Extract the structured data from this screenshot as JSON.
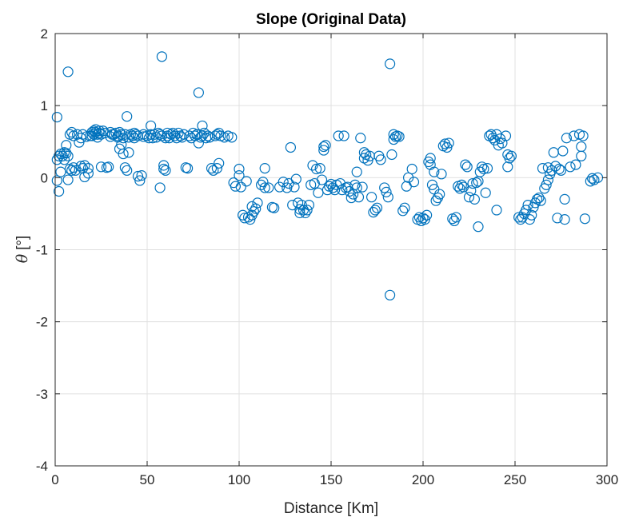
{
  "chart_data": {
    "type": "scatter",
    "title": "Slope (Original Data)",
    "xlabel": "Distance [Km]",
    "ylabel_symbol": "θ",
    "ylabel_unit": "[°]",
    "xlim": [
      0,
      300
    ],
    "ylim": [
      -4,
      2
    ],
    "xticks": [
      0,
      50,
      100,
      150,
      200,
      250,
      300
    ],
    "yticks": [
      -4,
      -3,
      -2,
      -1,
      0,
      1,
      2
    ],
    "grid": true,
    "marker": "open-circle",
    "marker_color": "#0072BD",
    "series": [
      {
        "points": [
          [
            1,
            0.84
          ],
          [
            1,
            0.25
          ],
          [
            1,
            -0.04
          ],
          [
            2,
            0.3
          ],
          [
            2,
            -0.19
          ],
          [
            3,
            0.33
          ],
          [
            3,
            0.08
          ],
          [
            4,
            0.3
          ],
          [
            5,
            0.25
          ],
          [
            5,
            0.35
          ],
          [
            6,
            0.34
          ],
          [
            6,
            0.45
          ],
          [
            7,
            0.3
          ],
          [
            7,
            1.47
          ],
          [
            7,
            -0.03
          ],
          [
            8,
            0.6
          ],
          [
            8,
            0.12
          ],
          [
            9,
            0.63
          ],
          [
            9,
            0.1
          ],
          [
            10,
            0.14
          ],
          [
            10,
            0.58
          ],
          [
            11,
            0.1
          ],
          [
            12,
            0.6
          ],
          [
            13,
            0.49
          ],
          [
            14,
            0.55
          ],
          [
            14,
            0.16
          ],
          [
            15,
            0.6
          ],
          [
            15,
            0.13
          ],
          [
            16,
            0.17
          ],
          [
            16,
            0.01
          ],
          [
            17,
            0.57
          ],
          [
            18,
            0.13
          ],
          [
            18,
            0.06
          ],
          [
            19,
            0.58
          ],
          [
            20,
            0.63
          ],
          [
            20,
            0.58
          ],
          [
            21,
            0.65
          ],
          [
            21,
            0.6
          ],
          [
            22,
            0.67
          ],
          [
            22,
            0.63
          ],
          [
            23,
            0.6
          ],
          [
            23,
            0.56
          ],
          [
            24,
            0.65
          ],
          [
            24,
            0.62
          ],
          [
            25,
            0.15
          ],
          [
            25,
            0.6
          ],
          [
            26,
            0.65
          ],
          [
            27,
            0.62
          ],
          [
            28,
            0.14
          ],
          [
            29,
            0.15
          ],
          [
            30,
            0.57
          ],
          [
            30,
            0.63
          ],
          [
            31,
            0.6
          ],
          [
            32,
            0.6
          ],
          [
            33,
            0.62
          ],
          [
            34,
            0.56
          ],
          [
            34,
            0.58
          ],
          [
            35,
            0.4
          ],
          [
            35,
            0.63
          ],
          [
            36,
            0.6
          ],
          [
            36,
            0.46
          ],
          [
            37,
            0.33
          ],
          [
            37,
            0.55
          ],
          [
            38,
            0.6
          ],
          [
            38,
            0.14
          ],
          [
            39,
            0.1
          ],
          [
            39,
            0.85
          ],
          [
            40,
            0.56
          ],
          [
            40,
            0.35
          ],
          [
            41,
            0.6
          ],
          [
            42,
            0.58
          ],
          [
            43,
            0.62
          ],
          [
            43,
            0.55
          ],
          [
            44,
            0.6
          ],
          [
            45,
            0.58
          ],
          [
            45,
            0.02
          ],
          [
            46,
            -0.04
          ],
          [
            47,
            0.03
          ],
          [
            48,
            0.57
          ],
          [
            48,
            0.6
          ],
          [
            50,
            0.58
          ],
          [
            51,
            0.55
          ],
          [
            52,
            0.72
          ],
          [
            52,
            0.6
          ],
          [
            53,
            0.55
          ],
          [
            54,
            0.6
          ],
          [
            55,
            0.56
          ],
          [
            56,
            0.62
          ],
          [
            57,
            0.6
          ],
          [
            57,
            -0.14
          ],
          [
            58,
            0.58
          ],
          [
            58,
            1.68
          ],
          [
            59,
            0.17
          ],
          [
            59,
            0.12
          ],
          [
            60,
            0.1
          ],
          [
            60,
            0.55
          ],
          [
            61,
            0.62
          ],
          [
            61,
            0.58
          ],
          [
            62,
            0.55
          ],
          [
            63,
            0.6
          ],
          [
            64,
            0.62
          ],
          [
            65,
            0.58
          ],
          [
            66,
            0.55
          ],
          [
            67,
            0.62
          ],
          [
            68,
            0.58
          ],
          [
            69,
            0.56
          ],
          [
            70,
            0.6
          ],
          [
            71,
            0.14
          ],
          [
            72,
            0.13
          ],
          [
            73,
            0.58
          ],
          [
            74,
            0.55
          ],
          [
            75,
            0.62
          ],
          [
            76,
            0.58
          ],
          [
            77,
            0.6
          ],
          [
            78,
            0.48
          ],
          [
            78,
            1.18
          ],
          [
            79,
            0.56
          ],
          [
            80,
            0.72
          ],
          [
            80,
            0.58
          ],
          [
            81,
            0.62
          ],
          [
            82,
            0.55
          ],
          [
            83,
            0.58
          ],
          [
            84,
            0.56
          ],
          [
            85,
            0.13
          ],
          [
            86,
            0.1
          ],
          [
            87,
            0.58
          ],
          [
            88,
            0.6
          ],
          [
            88,
            0.13
          ],
          [
            89,
            0.62
          ],
          [
            89,
            0.2
          ],
          [
            90,
            0.58
          ],
          [
            92,
            0.56
          ],
          [
            94,
            0.58
          ],
          [
            96,
            0.56
          ],
          [
            97,
            -0.07
          ],
          [
            98,
            -0.12
          ],
          [
            100,
            0.12
          ],
          [
            100,
            0.03
          ],
          [
            101,
            -0.13
          ],
          [
            102,
            -0.52
          ],
          [
            103,
            -0.56
          ],
          [
            104,
            -0.05
          ],
          [
            105,
            -0.55
          ],
          [
            106,
            -0.58
          ],
          [
            107,
            -0.52
          ],
          [
            107,
            -0.4
          ],
          [
            108,
            -0.47
          ],
          [
            109,
            -0.43
          ],
          [
            110,
            -0.35
          ],
          [
            112,
            -0.1
          ],
          [
            113,
            -0.06
          ],
          [
            114,
            -0.14
          ],
          [
            114,
            0.13
          ],
          [
            116,
            -0.14
          ],
          [
            118,
            -0.41
          ],
          [
            119,
            -0.42
          ],
          [
            122,
            -0.13
          ],
          [
            124,
            -0.06
          ],
          [
            126,
            -0.14
          ],
          [
            127,
            -0.08
          ],
          [
            128,
            0.42
          ],
          [
            129,
            -0.38
          ],
          [
            130,
            -0.13
          ],
          [
            131,
            -0.02
          ],
          [
            132,
            -0.35
          ],
          [
            133,
            -0.49
          ],
          [
            133,
            -0.44
          ],
          [
            134,
            -0.38
          ],
          [
            135,
            -0.45
          ],
          [
            136,
            -0.49
          ],
          [
            137,
            -0.45
          ],
          [
            138,
            -0.38
          ],
          [
            139,
            -0.1
          ],
          [
            140,
            0.17
          ],
          [
            141,
            -0.08
          ],
          [
            142,
            0.12
          ],
          [
            143,
            -0.21
          ],
          [
            144,
            0.13
          ],
          [
            145,
            -0.03
          ],
          [
            146,
            0.43
          ],
          [
            146,
            0.38
          ],
          [
            147,
            0.45
          ],
          [
            148,
            -0.17
          ],
          [
            149,
            -0.12
          ],
          [
            150,
            -0.09
          ],
          [
            151,
            -0.14
          ],
          [
            152,
            -0.17
          ],
          [
            153,
            -0.1
          ],
          [
            154,
            0.58
          ],
          [
            155,
            -0.08
          ],
          [
            156,
            -0.17
          ],
          [
            157,
            0.58
          ],
          [
            158,
            -0.14
          ],
          [
            159,
            -0.13
          ],
          [
            160,
            -0.19
          ],
          [
            161,
            -0.28
          ],
          [
            162,
            -0.23
          ],
          [
            163,
            -0.1
          ],
          [
            164,
            -0.14
          ],
          [
            164,
            0.08
          ],
          [
            165,
            -0.27
          ],
          [
            166,
            0.55
          ],
          [
            167,
            -0.13
          ],
          [
            168,
            0.35
          ],
          [
            168,
            0.27
          ],
          [
            169,
            0.32
          ],
          [
            170,
            0.24
          ],
          [
            171,
            0.3
          ],
          [
            172,
            -0.27
          ],
          [
            173,
            -0.48
          ],
          [
            174,
            -0.45
          ],
          [
            175,
            -0.42
          ],
          [
            176,
            0.3
          ],
          [
            177,
            0.25
          ],
          [
            179,
            -0.14
          ],
          [
            180,
            -0.2
          ],
          [
            181,
            -0.27
          ],
          [
            182,
            1.58
          ],
          [
            182,
            -1.63
          ],
          [
            183,
            0.32
          ],
          [
            184,
            0.53
          ],
          [
            184,
            0.6
          ],
          [
            185,
            0.57
          ],
          [
            186,
            0.58
          ],
          [
            187,
            0.57
          ],
          [
            189,
            -0.46
          ],
          [
            190,
            -0.42
          ],
          [
            191,
            -0.12
          ],
          [
            192,
            0.0
          ],
          [
            194,
            0.12
          ],
          [
            195,
            -0.06
          ],
          [
            197,
            -0.58
          ],
          [
            198,
            -0.55
          ],
          [
            199,
            -0.6
          ],
          [
            200,
            -0.56
          ],
          [
            201,
            -0.58
          ],
          [
            202,
            -0.52
          ],
          [
            203,
            0.22
          ],
          [
            204,
            0.27
          ],
          [
            204,
            0.18
          ],
          [
            205,
            -0.1
          ],
          [
            206,
            0.08
          ],
          [
            206,
            -0.16
          ],
          [
            207,
            -0.32
          ],
          [
            208,
            -0.28
          ],
          [
            209,
            -0.23
          ],
          [
            210,
            0.05
          ],
          [
            211,
            0.44
          ],
          [
            212,
            0.47
          ],
          [
            213,
            0.42
          ],
          [
            214,
            0.48
          ],
          [
            216,
            -0.57
          ],
          [
            217,
            -0.6
          ],
          [
            218,
            -0.55
          ],
          [
            219,
            -0.12
          ],
          [
            220,
            -0.15
          ],
          [
            221,
            -0.1
          ],
          [
            222,
            -0.13
          ],
          [
            223,
            0.18
          ],
          [
            224,
            0.15
          ],
          [
            225,
            -0.27
          ],
          [
            226,
            -0.18
          ],
          [
            227,
            -0.08
          ],
          [
            228,
            -0.3
          ],
          [
            229,
            -0.07
          ],
          [
            230,
            -0.05
          ],
          [
            230,
            -0.68
          ],
          [
            231,
            0.08
          ],
          [
            232,
            0.15
          ],
          [
            233,
            0.12
          ],
          [
            234,
            -0.21
          ],
          [
            235,
            0.13
          ],
          [
            236,
            0.58
          ],
          [
            237,
            0.6
          ],
          [
            238,
            0.55
          ],
          [
            239,
            0.52
          ],
          [
            240,
            0.6
          ],
          [
            240,
            -0.45
          ],
          [
            241,
            0.45
          ],
          [
            242,
            0.54
          ],
          [
            243,
            0.48
          ],
          [
            245,
            0.58
          ],
          [
            246,
            0.32
          ],
          [
            246,
            0.15
          ],
          [
            247,
            0.27
          ],
          [
            248,
            0.3
          ],
          [
            252,
            -0.55
          ],
          [
            253,
            -0.58
          ],
          [
            254,
            -0.55
          ],
          [
            255,
            -0.5
          ],
          [
            256,
            -0.45
          ],
          [
            257,
            -0.38
          ],
          [
            258,
            -0.58
          ],
          [
            259,
            -0.52
          ],
          [
            260,
            -0.41
          ],
          [
            261,
            -0.35
          ],
          [
            262,
            -0.3
          ],
          [
            263,
            -0.28
          ],
          [
            264,
            -0.32
          ],
          [
            265,
            0.13
          ],
          [
            266,
            -0.15
          ],
          [
            267,
            -0.1
          ],
          [
            268,
            -0.03
          ],
          [
            268,
            0.14
          ],
          [
            269,
            0.05
          ],
          [
            270,
            0.1
          ],
          [
            271,
            0.35
          ],
          [
            272,
            0.16
          ],
          [
            273,
            -0.56
          ],
          [
            274,
            0.12
          ],
          [
            275,
            0.1
          ],
          [
            276,
            0.37
          ],
          [
            277,
            -0.58
          ],
          [
            277,
            -0.3
          ],
          [
            278,
            0.55
          ],
          [
            280,
            0.15
          ],
          [
            282,
            0.58
          ],
          [
            283,
            0.18
          ],
          [
            285,
            0.6
          ],
          [
            286,
            0.43
          ],
          [
            286,
            0.3
          ],
          [
            287,
            0.58
          ],
          [
            288,
            -0.57
          ],
          [
            291,
            -0.05
          ],
          [
            292,
            -0.01
          ],
          [
            293,
            -0.03
          ],
          [
            295,
            0.0
          ]
        ]
      }
    ]
  }
}
